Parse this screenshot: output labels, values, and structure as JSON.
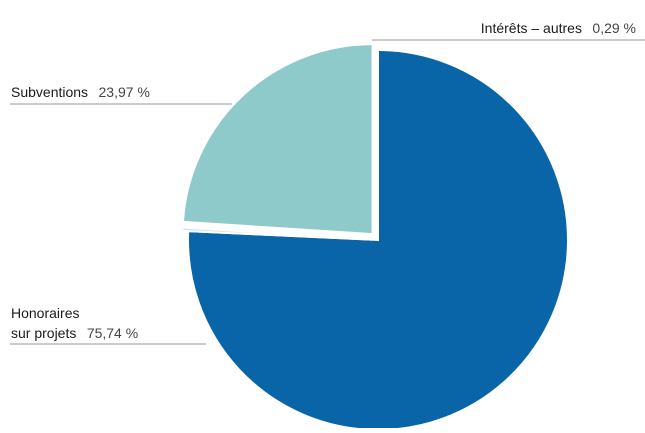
{
  "chart_data": {
    "type": "pie",
    "slices": [
      {
        "label": "Honoraires sur projets",
        "value": 75.74,
        "value_label": "75,74 %",
        "color": "#0a64a8"
      },
      {
        "label": "Intérêts – autres",
        "value": 0.29,
        "value_label": "0,29 %",
        "color": "#c9e8e5"
      },
      {
        "label": "Subventions",
        "value": 23.97,
        "value_label": "23,97 %",
        "color": "#8fcaca"
      }
    ],
    "legend": "none"
  },
  "labels": {
    "honoraires_line1": "Honoraires",
    "honoraires_line2": "sur projets",
    "honoraires_value": "75,74 %",
    "subventions_name": "Subventions",
    "subventions_value": "23,97 %",
    "interets_name": "Intérêts – autres",
    "interets_value": "0,29 %"
  },
  "colors": {
    "leader_line": "#9a9a9a"
  }
}
